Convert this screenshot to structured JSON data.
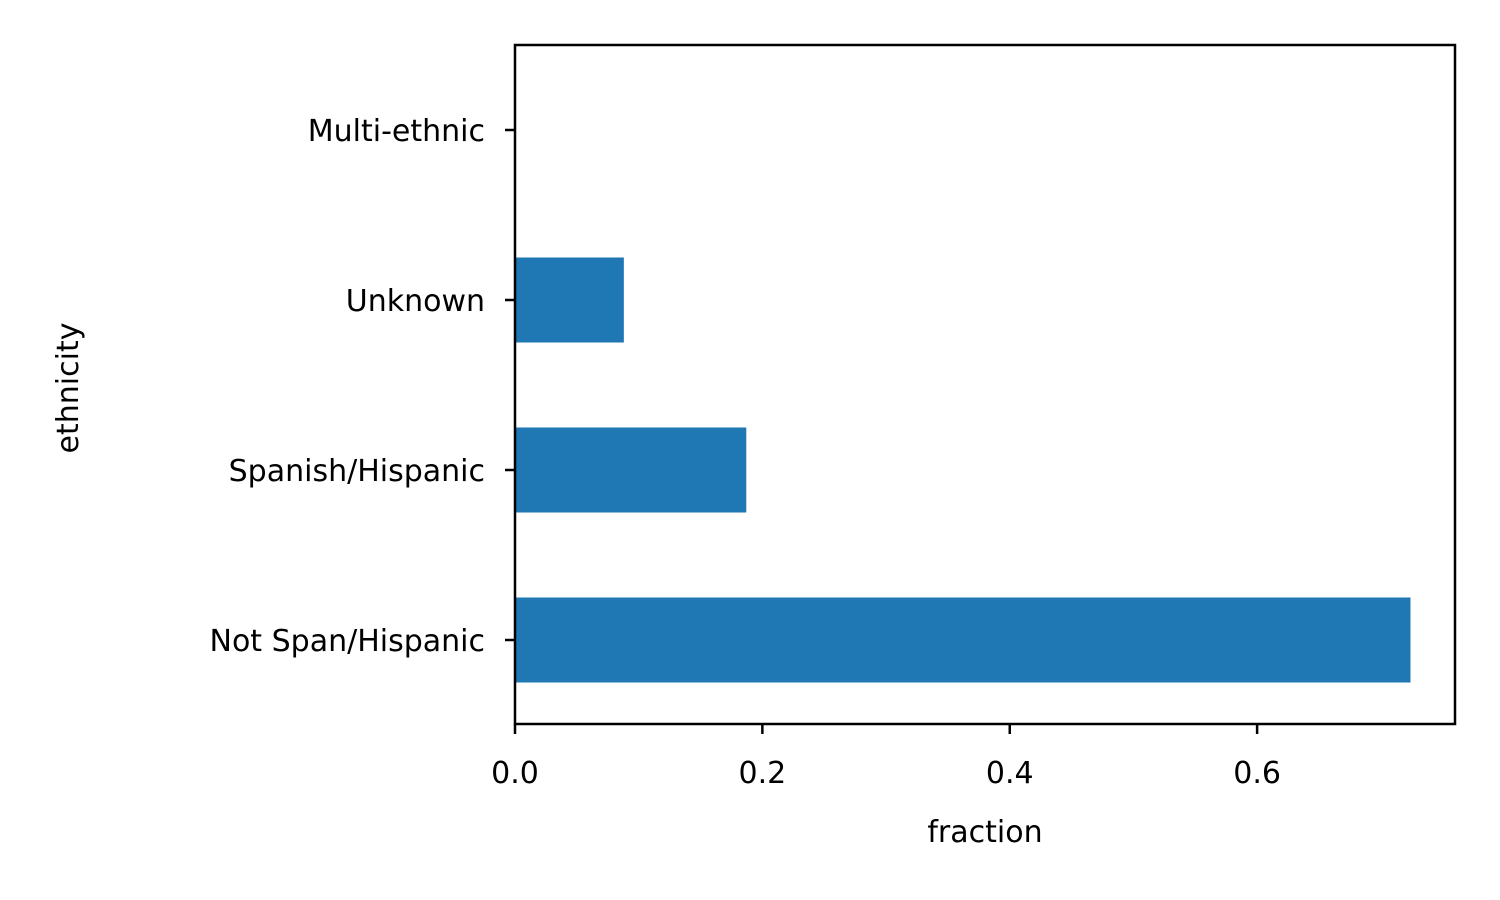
{
  "chart_data": {
    "type": "bar",
    "orientation": "horizontal",
    "categories": [
      "Not Span/Hispanic",
      "Spanish/Hispanic",
      "Unknown",
      "Multi-ethnic"
    ],
    "values": [
      0.724,
      0.187,
      0.088,
      0.0
    ],
    "xlabel": "fraction",
    "ylabel": "ethnicity",
    "xlim": [
      0,
      0.76
    ],
    "xticks": [
      0.0,
      0.2,
      0.4,
      0.6
    ],
    "xtick_labels": [
      "0.0",
      "0.2",
      "0.4",
      "0.6"
    ],
    "bar_color": "#1f77b4",
    "grid": false,
    "legend": false
  }
}
